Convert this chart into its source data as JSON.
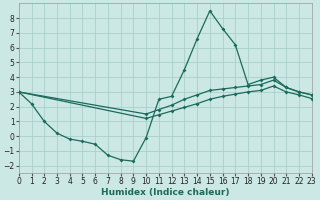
{
  "xlabel": "Humidex (Indice chaleur)",
  "background_color": "#cce8e4",
  "grid_color": "#aacfcb",
  "line_color": "#1a6b5a",
  "series1_x": [
    0,
    1,
    2,
    3,
    4,
    5,
    6,
    7,
    8,
    9,
    10,
    11,
    12,
    13,
    14,
    15,
    16,
    17,
    18,
    19,
    20,
    21,
    22,
    23
  ],
  "series1_y": [
    3.0,
    2.2,
    1.0,
    0.2,
    -0.2,
    -0.35,
    -0.55,
    -1.3,
    -1.6,
    -1.7,
    -0.1,
    2.5,
    2.7,
    4.5,
    6.6,
    8.5,
    7.3,
    6.2,
    3.5,
    3.8,
    4.0,
    3.3,
    3.0,
    2.8
  ],
  "series2_x": [
    0,
    10,
    11,
    12,
    13,
    14,
    15,
    16,
    17,
    18,
    19,
    20,
    21,
    22,
    23
  ],
  "series2_y": [
    3.0,
    1.5,
    1.8,
    2.1,
    2.5,
    2.8,
    3.1,
    3.2,
    3.3,
    3.4,
    3.5,
    3.8,
    3.3,
    3.0,
    2.8
  ],
  "series3_x": [
    0,
    10,
    11,
    12,
    13,
    14,
    15,
    16,
    17,
    18,
    19,
    20,
    21,
    22,
    23
  ],
  "series3_y": [
    3.0,
    1.2,
    1.45,
    1.7,
    1.95,
    2.2,
    2.5,
    2.7,
    2.85,
    3.0,
    3.1,
    3.4,
    3.0,
    2.8,
    2.55
  ],
  "xlim": [
    0,
    23
  ],
  "ylim": [
    -2.5,
    9.0
  ],
  "yticks": [
    -2,
    -1,
    0,
    1,
    2,
    3,
    4,
    5,
    6,
    7,
    8
  ],
  "xticks": [
    0,
    1,
    2,
    3,
    4,
    5,
    6,
    7,
    8,
    9,
    10,
    11,
    12,
    13,
    14,
    15,
    16,
    17,
    18,
    19,
    20,
    21,
    22,
    23
  ],
  "xlabel_fontsize": 6.5,
  "tick_labelsize": 5.5
}
